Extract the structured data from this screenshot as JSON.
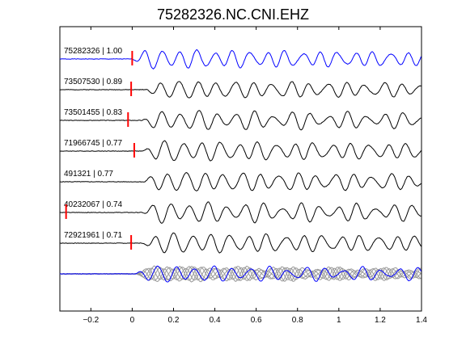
{
  "chart_data": {
    "type": "line",
    "title": "75282326.NC.CNI.EHZ",
    "xlabel": "",
    "ylabel": "",
    "xlim": [
      -0.35,
      1.4
    ],
    "x_ticks": [
      {
        "value": -0.2,
        "label": "−0.2"
      },
      {
        "value": 0,
        "label": "0"
      },
      {
        "value": 0.2,
        "label": "0.2"
      },
      {
        "value": 0.4,
        "label": "0.4"
      },
      {
        "value": 0.6,
        "label": "0.6"
      },
      {
        "value": 0.8,
        "label": "0.8"
      },
      {
        "value": 1.0,
        "label": "1"
      },
      {
        "value": 1.2,
        "label": "1.2"
      },
      {
        "value": 1.4,
        "label": "1.4"
      }
    ],
    "grid": false,
    "traces": [
      {
        "label": "75282326 | 1.00",
        "color": "#0000ff",
        "pick": 0.0,
        "onset": 0.0,
        "amp": 0.9,
        "period": 0.085,
        "seed": 1
      },
      {
        "label": "73507530 | 0.89",
        "color": "#000000",
        "pick": -0.005,
        "onset": 0.06,
        "amp": 0.85,
        "period": 0.09,
        "seed": 2
      },
      {
        "label": "73501455 | 0.83",
        "color": "#000000",
        "pick": -0.02,
        "onset": 0.05,
        "amp": 0.9,
        "period": 0.09,
        "seed": 3
      },
      {
        "label": "71966745 | 0.77",
        "color": "#000000",
        "pick": 0.01,
        "onset": 0.05,
        "amp": 0.95,
        "period": 0.09,
        "seed": 4
      },
      {
        "label": "491321 | 0.77",
        "color": "#000000",
        "pick": null,
        "onset": 0.05,
        "amp": 0.95,
        "period": 0.09,
        "seed": 5
      },
      {
        "label": "40232067 | 0.74",
        "color": "#000000",
        "pick": -0.32,
        "onset": 0.05,
        "amp": 0.95,
        "period": 0.09,
        "seed": 6
      },
      {
        "label": "72921961 | 0.71",
        "color": "#000000",
        "pick": -0.005,
        "onset": 0.05,
        "amp": 0.95,
        "period": 0.09,
        "seed": 7
      }
    ],
    "stack": {
      "onset": 0.0,
      "amp": 0.75,
      "period": 0.09,
      "overlay_color": "#999999",
      "master_color": "#0000ff"
    },
    "pick_color": "#ff0000"
  }
}
